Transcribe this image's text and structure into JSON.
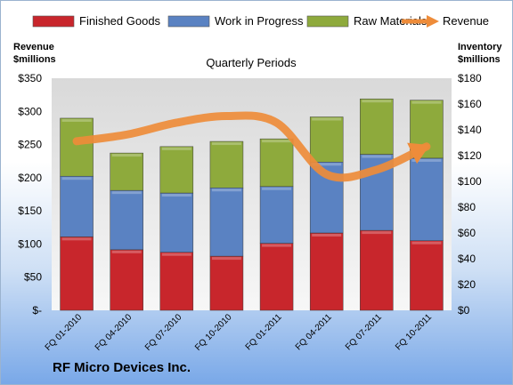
{
  "chart_data": {
    "type": "bar",
    "stacked": true,
    "subtitle": "Quarterly Periods",
    "categories": [
      "FQ 01-2010",
      "FQ 04-2010",
      "FQ 07-2010",
      "FQ 10-2010",
      "FQ 01-2011",
      "FQ 04-2011",
      "FQ 07-2011",
      "FQ 10-2011"
    ],
    "series": [
      {
        "name": "Finished Goods",
        "color": "#c8262c",
        "axis": "right",
        "values": [
          57,
          47,
          45,
          42,
          52,
          60,
          62,
          54
        ]
      },
      {
        "name": "Work in Progress",
        "color": "#5a82c2",
        "axis": "right",
        "values": [
          47,
          46,
          46,
          53,
          44,
          55,
          59,
          64
        ]
      },
      {
        "name": "Raw Materials",
        "color": "#8eaa3c",
        "axis": "right",
        "values": [
          45,
          29,
          36,
          36,
          37,
          35,
          43,
          45
        ]
      }
    ],
    "line_series": {
      "name": "Revenue",
      "color": "#ee8c3a",
      "axis": "left",
      "values": [
        255,
        265,
        283,
        293,
        283,
        205,
        212,
        247
      ]
    },
    "left_axis": {
      "title_line1": "Revenue",
      "title_line2": "$millions",
      "ylim": [
        0,
        350
      ],
      "ticks": [
        "$-",
        "$50",
        "$100",
        "$150",
        "$200",
        "$250",
        "$300",
        "$350"
      ]
    },
    "right_axis": {
      "title_line1": "Inventory",
      "title_line2": "$millions",
      "ylim": [
        0,
        180
      ],
      "ticks": [
        "$0",
        "$20",
        "$40",
        "$60",
        "$80",
        "$100",
        "$120",
        "$140",
        "$160",
        "$180"
      ]
    },
    "legend_position": "top",
    "grid": false
  },
  "company_name": "RF Micro Devices Inc."
}
